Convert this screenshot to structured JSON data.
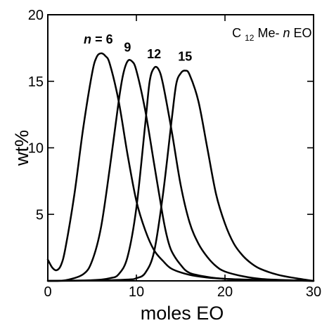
{
  "chart_data": {
    "type": "line",
    "title": "",
    "xlabel": "moles EO",
    "ylabel": "wt%",
    "xlim": [
      0,
      30
    ],
    "ylim": [
      0,
      20
    ],
    "x_ticks": [
      0,
      10,
      20,
      30
    ],
    "y_ticks": [
      5,
      10,
      15,
      20
    ],
    "x_tick_labels": [
      "0",
      "10",
      "20",
      "30"
    ],
    "y_tick_labels": [
      "5",
      "10",
      "15",
      "20"
    ],
    "n_prefix": "n",
    "n_eq": " = 6",
    "legend": {
      "prefix": "C",
      "sub": "12",
      "middle": "Me-",
      "italic": "n",
      "suffix": " EO"
    },
    "grid": false,
    "series": [
      {
        "name": "6",
        "x": [
          0,
          0.5,
          1,
          1.5,
          2,
          3,
          4,
          5,
          5.5,
          6,
          6.5,
          7,
          8,
          9,
          10,
          11,
          12,
          13,
          14,
          16,
          18,
          20,
          22,
          25,
          28,
          30
        ],
        "y": [
          1.6,
          1.0,
          0.8,
          1.2,
          2.5,
          6.5,
          11.5,
          15.6,
          16.8,
          17.1,
          16.9,
          16.3,
          13.5,
          9.5,
          6.0,
          3.8,
          2.3,
          1.5,
          0.9,
          0.45,
          0.25,
          0.15,
          0.1,
          0.05,
          0.02,
          0.0
        ]
      },
      {
        "name": "9",
        "x": [
          0,
          2,
          4,
          5,
          6,
          7,
          8,
          8.5,
          9,
          9.5,
          10,
          11,
          12,
          13,
          13.5,
          14,
          15,
          16,
          18,
          20,
          22,
          25,
          28,
          30
        ],
        "y": [
          0,
          0.05,
          0.5,
          1.5,
          4.0,
          8.5,
          13.5,
          15.5,
          16.5,
          16.5,
          15.8,
          12.8,
          8.8,
          4.8,
          3.2,
          2.2,
          1.2,
          0.6,
          0.3,
          0.15,
          0.1,
          0.05,
          0.02,
          0.0
        ]
      },
      {
        "name": "12",
        "x": [
          0,
          5,
          7,
          8,
          9,
          10,
          11,
          11.5,
          12,
          12.5,
          13,
          14,
          15,
          16,
          17,
          18,
          19,
          20,
          22,
          24,
          26,
          28,
          30
        ],
        "y": [
          0,
          0.05,
          0.2,
          0.5,
          1.8,
          5.5,
          11.8,
          15.0,
          16.0,
          15.9,
          14.8,
          11.2,
          7.2,
          4.4,
          2.8,
          1.8,
          1.1,
          0.7,
          0.35,
          0.15,
          0.08,
          0.04,
          0.0
        ]
      },
      {
        "name": "15",
        "x": [
          0,
          5,
          9,
          10,
          11,
          12,
          13,
          14,
          14.5,
          15,
          15.5,
          16,
          17,
          18,
          19,
          20,
          21,
          22,
          23,
          24,
          26,
          28,
          30
        ],
        "y": [
          0,
          0.02,
          0.1,
          0.2,
          0.6,
          2.2,
          6.5,
          12.2,
          14.8,
          15.6,
          15.8,
          15.5,
          13.5,
          10.0,
          6.5,
          4.3,
          2.8,
          1.9,
          1.3,
          0.9,
          0.45,
          0.2,
          0.0
        ]
      }
    ]
  }
}
